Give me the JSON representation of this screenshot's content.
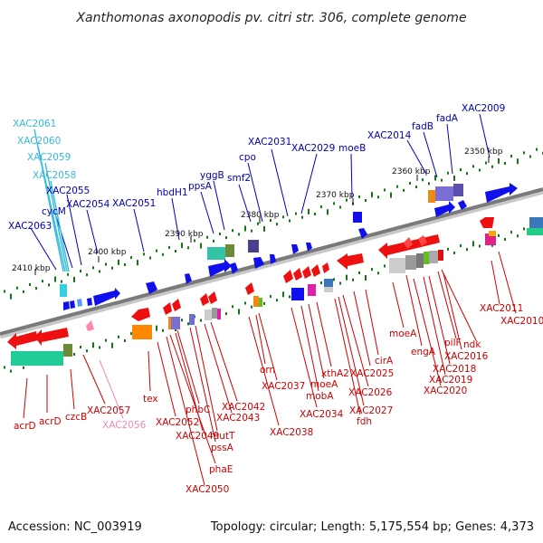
{
  "title": "Xanthomonas axonopodis pv. citri str. 306, complete genome",
  "accession": "Accession: NC_003919",
  "summary": "Topology: circular; Length: 5,175,554 bp; Genes: 4,373",
  "colors": {
    "backbone": "#8a8a8a",
    "forward_label": "#0000b8",
    "forward_label_cyan": "#33bbdd",
    "reverse_label": "#d00000",
    "reverse_label_pink": "#ee88bb",
    "forward_gene": "#1010ee",
    "reverse_gene": "#ee1010",
    "tick": "#117711"
  },
  "kbp_labels": [
    "2350 kbp",
    "2360 kbp",
    "2370 kbp",
    "2380 kbp",
    "2390 kbp",
    "2400 kbp",
    "2410 kbp"
  ],
  "top_labels": [
    "XAC2009",
    "fadA",
    "fadB",
    "XAC2014",
    "moeB",
    "XAC2029",
    "XAC2031",
    "cpo",
    "smf2",
    "yggB",
    "ppsA",
    "hbdH1",
    "XAC2051",
    "XAC2054",
    "XAC2055",
    "cycM",
    "XAC2063",
    "XAC2058",
    "XAC2059",
    "XAC2060",
    "XAC2061"
  ],
  "bottom_labels": [
    "XAC2011",
    "XAC2010",
    "ndk",
    "pilF",
    "XAC2016",
    "engA",
    "XAC2018",
    "XAC2019",
    "XAC2020",
    "moeA",
    "cirA",
    "XAC2025",
    "XAC2026",
    "XAC2027",
    "fdh",
    "xthA2",
    "moeA",
    "mobA",
    "XAC2034",
    "XAC2037",
    "orn",
    "XAC2038",
    "XAC2042",
    "XAC2043",
    "mutT",
    "pssA",
    "phbC",
    "XAC2049",
    "phaE",
    "XAC2050",
    "XAC2052",
    "tex",
    "XAC2057",
    "XAC2056",
    "czcB",
    "acrD",
    "acrD"
  ]
}
